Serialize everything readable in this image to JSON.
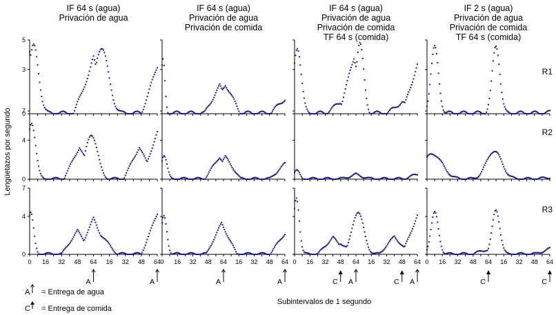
{
  "chart_data": {
    "type": "scatter",
    "ylabel": "Lengüetazos por segundo",
    "xlabel": "Subintervalos de 1 segundo",
    "columns": [
      {
        "title": [
          "IF 64 s (agua)",
          "Privación de agua"
        ],
        "xticks": [
          "0",
          "16",
          "32",
          "48",
          "64",
          "16",
          "32",
          "48",
          "64"
        ],
        "markers": [
          {
            "x": 64,
            "type": "A"
          },
          {
            "x": 128,
            "type": "A"
          }
        ]
      },
      {
        "title": [
          "IF 64 s (agua)",
          "Privación de agua",
          "Privación de comida"
        ],
        "xticks": [
          "0",
          "16",
          "32",
          "48",
          "64",
          "16",
          "32",
          "48",
          "64"
        ],
        "markers": [
          {
            "x": 64,
            "type": "A"
          },
          {
            "x": 128,
            "type": "A"
          }
        ]
      },
      {
        "title": [
          "IF 64 s (agua)",
          "Privación de agua",
          "Privación de comida",
          "TF 64 s (comida)"
        ],
        "xticks": [
          "0",
          "16",
          "32",
          "48",
          "64",
          "16",
          "32",
          "48",
          "64"
        ],
        "markers": [
          {
            "x": 48,
            "type": "C"
          },
          {
            "x": 64,
            "type": "A"
          },
          {
            "x": 112,
            "type": "C"
          },
          {
            "x": 128,
            "type": "A"
          }
        ]
      },
      {
        "title": [
          "IF 2 s (agua)",
          "Privación de agua",
          "Privación de comida",
          "TF 64 s (comida)"
        ],
        "xticks": [
          "0",
          "16",
          "32",
          "48",
          "64",
          "16",
          "32",
          "48",
          "64"
        ],
        "markers": [
          {
            "x": 64,
            "type": "C"
          },
          {
            "x": 128,
            "type": "C"
          }
        ]
      }
    ],
    "rows": [
      {
        "label": "R1",
        "ymax": 5,
        "yticks": [
          "0",
          "3",
          "5"
        ],
        "ytickvals": [
          0,
          3,
          5
        ]
      },
      {
        "label": "R2",
        "ymax": 7,
        "yticks": [
          "0",
          "4",
          "7"
        ],
        "ytickvals": [
          0,
          4,
          7
        ]
      },
      {
        "label": "R3",
        "ymax": 7,
        "yticks": [
          "0",
          "4",
          "7"
        ],
        "ytickvals": [
          0,
          4,
          7
        ]
      }
    ],
    "xrange": [
      0,
      128
    ],
    "panels": [
      {
        "row": 0,
        "col": 0,
        "peaks": [
          [
            4,
            4.6,
            5
          ],
          [
            72,
            4.5,
            7
          ]
        ],
        "low": [
          [
            20,
            0.1
          ],
          [
            100,
            0.1
          ]
        ],
        "ends": [
          [
            0,
            4.2
          ],
          [
            60,
            2.8
          ],
          [
            64,
            3.8
          ],
          [
            128,
            3.2
          ]
        ]
      },
      {
        "row": 0,
        "col": 1,
        "peaks": [
          [
            1,
            3.6,
            2
          ]
        ],
        "low": [
          [
            8,
            0.2
          ],
          [
            70,
            0.1
          ]
        ],
        "ends": [
          [
            60,
            1.9
          ],
          [
            66,
            2.0
          ],
          [
            128,
            1.0
          ]
        ]
      },
      {
        "row": 0,
        "col": 2,
        "peaks": [
          [
            3,
            4.5,
            4
          ],
          [
            68,
            4.8,
            4
          ]
        ],
        "low": [
          [
            14,
            0.2
          ],
          [
            80,
            0.2
          ]
        ],
        "ends": [
          [
            48,
            0.8
          ],
          [
            62,
            3.8
          ],
          [
            112,
            0.8
          ],
          [
            128,
            3.3
          ]
        ]
      },
      {
        "row": 0,
        "col": 3,
        "peaks": [
          [
            8,
            4.5,
            4
          ],
          [
            72,
            4.6,
            4
          ]
        ],
        "low": [
          [
            20,
            0.2
          ],
          [
            86,
            0.2
          ]
        ],
        "ends": [
          [
            64,
            0.1
          ],
          [
            128,
            0.1
          ]
        ]
      },
      {
        "row": 1,
        "col": 0,
        "peaks": [
          [
            2,
            5.8,
            4
          ],
          [
            62,
            4.6,
            6
          ]
        ],
        "low": [
          [
            14,
            0.4
          ],
          [
            78,
            0.3
          ]
        ],
        "ends": [
          [
            50,
            3.3
          ],
          [
            110,
            3.3
          ],
          [
            128,
            4.8
          ]
        ]
      },
      {
        "row": 1,
        "col": 1,
        "peaks": [
          [
            2,
            2.5,
            3
          ]
        ],
        "low": [
          [
            12,
            0.1
          ],
          [
            76,
            0.1
          ]
        ],
        "ends": [
          [
            60,
            2.3
          ],
          [
            66,
            2.3
          ],
          [
            128,
            1.6
          ]
        ]
      },
      {
        "row": 1,
        "col": 2,
        "peaks": [
          [
            2,
            0.9,
            3
          ]
        ],
        "low": [
          [
            16,
            0.4
          ]
        ],
        "ends": [
          [
            64,
            0.5
          ],
          [
            128,
            0.5
          ]
        ]
      },
      {
        "row": 1,
        "col": 3,
        "peaks": [
          [
            6,
            2.6,
            10
          ],
          [
            70,
            2.9,
            8
          ]
        ],
        "low": [
          [
            62,
            0.2
          ],
          [
            126,
            0.2
          ]
        ],
        "ends": [
          [
            64,
            0.1
          ],
          [
            128,
            0.2
          ]
        ]
      },
      {
        "row": 2,
        "col": 0,
        "peaks": [
          [
            1,
            4.4,
            3
          ]
        ],
        "low": [
          [
            18,
            0.1
          ],
          [
            84,
            0.1
          ]
        ],
        "ends": [
          [
            48,
            2.5
          ],
          [
            64,
            3.8
          ],
          [
            72,
            2.0
          ],
          [
            128,
            4.3
          ]
        ]
      },
      {
        "row": 2,
        "col": 1,
        "peaks": [
          [
            2,
            4.0,
            3
          ]
        ],
        "low": [
          [
            20,
            0.1
          ],
          [
            84,
            0.1
          ]
        ],
        "ends": [
          [
            62,
            3.3
          ],
          [
            128,
            2.2
          ]
        ]
      },
      {
        "row": 2,
        "col": 2,
        "peaks": [
          [
            2,
            6.0,
            3
          ],
          [
            66,
            4.5,
            6
          ]
        ],
        "low": [
          [
            16,
            0.3
          ],
          [
            84,
            0.6
          ]
        ],
        "ends": [
          [
            40,
            1.8
          ],
          [
            48,
            1.2
          ],
          [
            104,
            1.9
          ],
          [
            128,
            4.1
          ]
        ]
      },
      {
        "row": 2,
        "col": 3,
        "peaks": [
          [
            8,
            4.4,
            4
          ],
          [
            72,
            4.7,
            4
          ]
        ],
        "low": [
          [
            20,
            0.5
          ],
          [
            84,
            0.5
          ]
        ],
        "ends": [
          [
            62,
            0.5
          ],
          [
            128,
            0.6
          ]
        ]
      }
    ]
  },
  "legend": {
    "a_letter": "A",
    "a_label": "= Entrega de agua",
    "c_letter": "C",
    "c_label": "= Entrega de comida"
  },
  "colors": {
    "points": "#1a1a8a",
    "axes": "#000000"
  }
}
